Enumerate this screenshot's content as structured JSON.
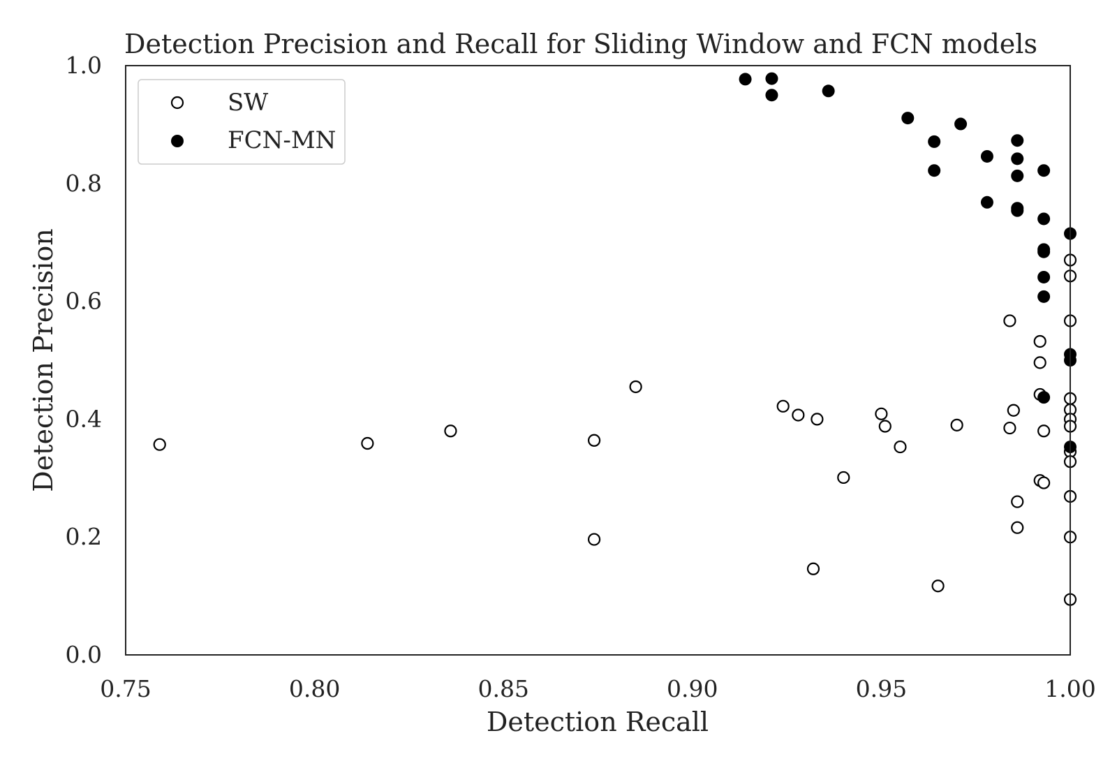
{
  "chart_data": {
    "type": "scatter",
    "title": "Detection Precision and Recall for Sliding Window and FCN models",
    "xlabel": "Detection Recall",
    "ylabel": "Detection Precision",
    "xlim": [
      0.75,
      1.0
    ],
    "ylim": [
      0.0,
      1.0
    ],
    "xticks": [
      "0.75",
      "0.80",
      "0.85",
      "0.90",
      "0.95",
      "1.00"
    ],
    "yticks": [
      "0.0",
      "0.2",
      "0.4",
      "0.6",
      "0.8",
      "1.0"
    ],
    "grid": false,
    "legend_position": "top-left",
    "series": [
      {
        "name": "SW",
        "marker": "hollow-circle",
        "color": "#000000",
        "points": [
          [
            0.759,
            0.357
          ],
          [
            0.814,
            0.359
          ],
          [
            0.836,
            0.38
          ],
          [
            0.874,
            0.364
          ],
          [
            0.874,
            0.196
          ],
          [
            0.885,
            0.455
          ],
          [
            0.924,
            0.422
          ],
          [
            0.928,
            0.407
          ],
          [
            0.933,
            0.4
          ],
          [
            0.932,
            0.146
          ],
          [
            0.94,
            0.301
          ],
          [
            0.95,
            0.409
          ],
          [
            0.951,
            0.388
          ],
          [
            0.955,
            0.353
          ],
          [
            0.965,
            0.117
          ],
          [
            0.97,
            0.39
          ],
          [
            0.984,
            0.567
          ],
          [
            0.985,
            0.415
          ],
          [
            0.984,
            0.385
          ],
          [
            0.986,
            0.26
          ],
          [
            0.986,
            0.216
          ],
          [
            0.992,
            0.532
          ],
          [
            0.992,
            0.496
          ],
          [
            0.992,
            0.442
          ],
          [
            0.993,
            0.38
          ],
          [
            0.992,
            0.296
          ],
          [
            0.993,
            0.292
          ],
          [
            1.0,
            0.67
          ],
          [
            1.0,
            0.643
          ],
          [
            1.0,
            0.567
          ],
          [
            1.0,
            0.435
          ],
          [
            1.0,
            0.416
          ],
          [
            1.0,
            0.4
          ],
          [
            1.0,
            0.388
          ],
          [
            1.0,
            0.345
          ],
          [
            1.0,
            0.328
          ],
          [
            1.0,
            0.269
          ],
          [
            1.0,
            0.2
          ],
          [
            1.0,
            0.094
          ]
        ]
      },
      {
        "name": "FCN-MN",
        "marker": "filled-circle",
        "color": "#000000",
        "points": [
          [
            0.914,
            0.977
          ],
          [
            0.921,
            0.978
          ],
          [
            0.921,
            0.95
          ],
          [
            0.936,
            0.957
          ],
          [
            0.957,
            0.911
          ],
          [
            0.964,
            0.871
          ],
          [
            0.964,
            0.822
          ],
          [
            0.971,
            0.901
          ],
          [
            0.978,
            0.846
          ],
          [
            0.978,
            0.768
          ],
          [
            0.986,
            0.873
          ],
          [
            0.986,
            0.842
          ],
          [
            0.986,
            0.813
          ],
          [
            0.986,
            0.758
          ],
          [
            0.986,
            0.754
          ],
          [
            0.993,
            0.822
          ],
          [
            0.993,
            0.74
          ],
          [
            0.993,
            0.688
          ],
          [
            0.993,
            0.684
          ],
          [
            0.993,
            0.641
          ],
          [
            0.993,
            0.608
          ],
          [
            0.993,
            0.437
          ],
          [
            1.0,
            0.715
          ],
          [
            1.0,
            0.51
          ],
          [
            1.0,
            0.5
          ],
          [
            1.0,
            0.353
          ]
        ]
      }
    ]
  }
}
